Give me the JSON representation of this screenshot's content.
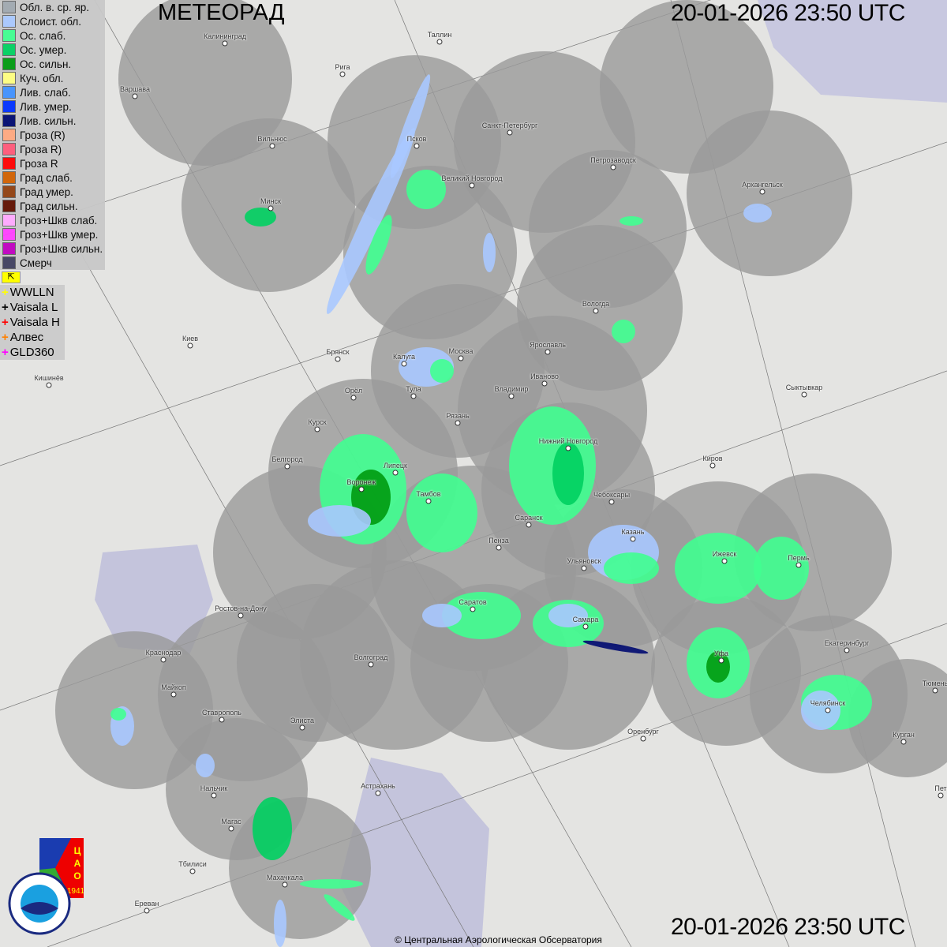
{
  "header": {
    "title": "МЕТЕОРАД",
    "timestamp_top": "20-01-2026  23:50 UTC",
    "timestamp_bottom": "20-01-2026  23:50 UTC"
  },
  "legend": [
    {
      "label": "Обл. в. ср. яр.",
      "color": "#a0a8b0"
    },
    {
      "label": "Слоист. обл.",
      "color": "#a8c8ff"
    },
    {
      "label": "Ос. слаб.",
      "color": "#40ff90"
    },
    {
      "label": "Ос. умер.",
      "color": "#00d060"
    },
    {
      "label": "Ос. сильн.",
      "color": "#009a10"
    },
    {
      "label": "Куч. обл.",
      "color": "#ffff80"
    },
    {
      "label": "Лив. слаб.",
      "color": "#4090ff"
    },
    {
      "label": "Лив. умер.",
      "color": "#0030ff"
    },
    {
      "label": "Лив. сильн.",
      "color": "#000a70"
    },
    {
      "label": "Гроза (R)",
      "color": "#ffa880"
    },
    {
      "label": "Гроза R)",
      "color": "#ff5878"
    },
    {
      "label": "Гроза R",
      "color": "#ff0000"
    },
    {
      "label": "Град слаб.",
      "color": "#d06000"
    },
    {
      "label": "Град умер.",
      "color": "#904010"
    },
    {
      "label": "Град сильн.",
      "color": "#601000"
    },
    {
      "label": "Гроз+Шкв слаб.",
      "color": "#ffa8ff"
    },
    {
      "label": "Гроз+Шкв умер.",
      "color": "#ff40ff"
    },
    {
      "label": "Гроз+Шкв сильн.",
      "color": "#c000c0"
    },
    {
      "label": "Смерч",
      "color": "#404060"
    }
  ],
  "lightning": [
    {
      "label": "WWLLN",
      "color": "#ffff00"
    },
    {
      "label": "Vaisala L",
      "color": "#000000"
    },
    {
      "label": "Vaisala H",
      "color": "#ff0000"
    },
    {
      "label": "Алвес",
      "color": "#ff8000"
    },
    {
      "label": "GLD360",
      "color": "#ff00ff"
    }
  ],
  "cities": [
    "Калининград",
    "Таллин",
    "Рига",
    "Варшава",
    "Вильнюс",
    "Псков",
    "Санкт-Петербург",
    "Петрозаводск",
    "Архангельск",
    "Великий Новгород",
    "Минск",
    "Вологда",
    "Киев",
    "Брянск",
    "Калуга",
    "Москва",
    "Ярославль",
    "Иваново",
    "Кишинёв",
    "Тула",
    "Владимир",
    "Орёл",
    "Сыктывкар",
    "Рязань",
    "Курск",
    "Нижний Новгород",
    "Белгород",
    "Киров",
    "Липецк",
    "Воронеж",
    "Тамбов",
    "Чебоксары",
    "Саранск",
    "Казань",
    "Пенза",
    "Ижевск",
    "Пермь",
    "Ульяновск",
    "Саратов",
    "Ростов-на-Дону",
    "Самара",
    "Екатеринбург",
    "Краснодар",
    "Уфа",
    "Волгоград",
    "Майкоп",
    "Тюмень",
    "Челябинск",
    "Ставрополь",
    "Элиста",
    "Оренбург",
    "Курган",
    "Астрахань",
    "Нальчик",
    "Магас",
    "Тбилиси",
    "Махачкала",
    "Ереван",
    "Пет"
  ],
  "logos": {
    "cao": "ЦАО 1941",
    "roshydromet": "РОСГИДРОМЕТ ROSHYDROMET"
  },
  "footer": {
    "copyright": "© Центральная Аэрологическая Обсерватория"
  }
}
